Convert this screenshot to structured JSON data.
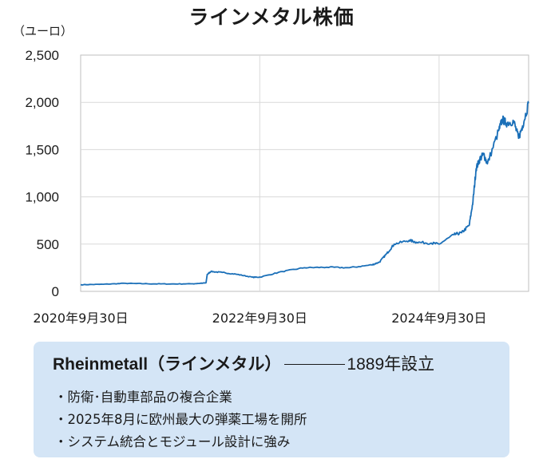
{
  "title": "ラインメタル株価",
  "unit_label": "（ユーロ）",
  "colors": {
    "line": "#1a6fb8",
    "grid": "#d9d9d9",
    "box": "#d4e5f6"
  },
  "chart_data": {
    "type": "line",
    "title": "ラインメタル株価",
    "ylabel": "（ユーロ）",
    "ylim": [
      0,
      2500
    ],
    "yticks": [
      0,
      500,
      1000,
      1500,
      2000,
      2500
    ],
    "ytick_labels": [
      "0",
      "500",
      "1,000",
      "1,500",
      "2,000",
      "2,500"
    ],
    "xtick_labels": [
      "2020年9月30日",
      "2022年9月30日",
      "2024年9月30日"
    ],
    "grid": true,
    "series": [
      {
        "x": [
          "2020-09-30",
          "2020-12-31",
          "2021-03-31",
          "2021-06-30",
          "2021-09-30",
          "2021-12-31",
          "2022-02-23",
          "2022-02-28",
          "2022-03-15",
          "2022-04-30",
          "2022-06-30",
          "2022-08-31",
          "2022-09-30",
          "2022-12-31",
          "2023-03-31",
          "2023-06-30",
          "2023-09-30",
          "2023-12-31",
          "2024-01-31",
          "2024-03-01",
          "2024-03-31",
          "2024-05-31",
          "2024-06-30",
          "2024-08-31",
          "2024-09-30",
          "2024-11-30",
          "2024-12-31",
          "2025-01-31",
          "2025-02-15",
          "2025-02-28",
          "2025-03-15",
          "2025-03-31",
          "2025-04-15",
          "2025-05-31",
          "2025-06-15",
          "2025-06-30",
          "2025-07-31",
          "2025-08-20",
          "2025-09-05",
          "2025-09-30"
        ],
        "values": [
          70,
          75,
          85,
          80,
          78,
          80,
          90,
          180,
          210,
          200,
          180,
          150,
          150,
          210,
          250,
          255,
          250,
          280,
          310,
          400,
          500,
          540,
          520,
          510,
          500,
          600,
          620,
          700,
          950,
          1300,
          1400,
          1450,
          1350,
          1700,
          1820,
          1780,
          1800,
          1620,
          1750,
          1990
        ]
      }
    ]
  },
  "info": {
    "company_name": "Rheinmetall（ラインメタル）",
    "founded": "1889年設立",
    "bullets": [
      "・防衛･自動車部品の複合企業",
      "・2025年8月に欧州最大の弾薬工場を開所",
      "・システム統合とモジュール設計に強み"
    ]
  }
}
